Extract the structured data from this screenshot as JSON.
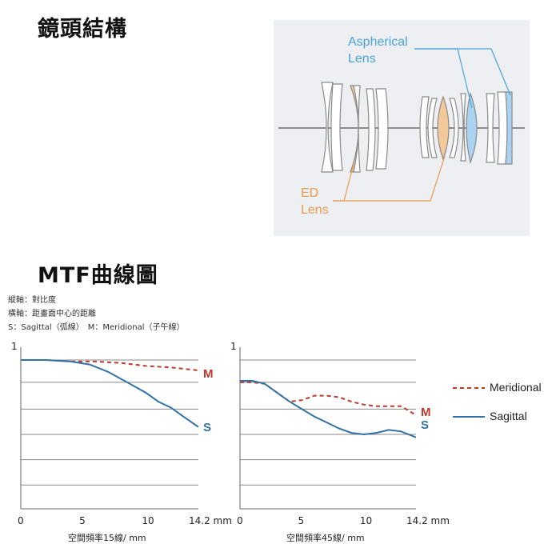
{
  "headings": {
    "lens_structure": "鏡頭結構",
    "mtf": "MTF曲線圖"
  },
  "lens_diagram": {
    "aspherical_label": [
      "Aspherical",
      "Lens"
    ],
    "ed_label": [
      "ED",
      "Lens"
    ],
    "colors": {
      "aspherical": "#a9d3f0",
      "ed": "#f4c99a",
      "line": "#8a8a8a",
      "blue": "#4aa3d6",
      "orange": "#e79a4a",
      "panel": "#eeeff3"
    }
  },
  "notes": [
    "縱軸：對比度",
    "橫軸：距畫面中心的距離",
    "S：Sagittal（弧線）　M：Meridional（子午線）"
  ],
  "legend": {
    "meridional": "Meridional",
    "sagittal": "Sagittal"
  },
  "colors": {
    "meridional": "#c0392b",
    "sagittal": "#2f73a8",
    "grid": "#888888"
  },
  "chart_data": [
    {
      "type": "line",
      "xlabel": "空間頻率15線/ mm",
      "ylabel": "",
      "xlim": [
        0,
        14.2
      ],
      "ylim": [
        0,
        1
      ],
      "x_ticks": [
        "0",
        "5",
        "10",
        "14.2 mm"
      ],
      "y_ticks": [
        "1"
      ],
      "grid": true,
      "series": [
        {
          "name": "Meridional",
          "tag": "M",
          "style": "dashed",
          "x": [
            0,
            2,
            4,
            6,
            8,
            10,
            12,
            14.2
          ],
          "y": [
            1.0,
            1.0,
            0.99,
            0.99,
            0.98,
            0.96,
            0.95,
            0.93
          ]
        },
        {
          "name": "Sagittal",
          "tag": "S",
          "style": "solid",
          "x": [
            0,
            2,
            4,
            5.5,
            7,
            8.5,
            10,
            11,
            12,
            13,
            14.2
          ],
          "y": [
            1.0,
            1.0,
            0.99,
            0.97,
            0.92,
            0.85,
            0.78,
            0.72,
            0.68,
            0.62,
            0.55
          ]
        }
      ]
    },
    {
      "type": "line",
      "xlabel": "空間頻率45線/ mm",
      "ylabel": "",
      "xlim": [
        0,
        14.2
      ],
      "ylim": [
        0,
        1
      ],
      "x_ticks": [
        "0",
        "5",
        "10",
        "14.2 mm"
      ],
      "y_ticks": [
        "1"
      ],
      "grid": true,
      "series": [
        {
          "name": "Meridional",
          "tag": "M",
          "style": "dashed",
          "x": [
            0,
            1,
            2,
            3,
            4,
            5,
            6,
            7,
            8,
            9,
            10,
            11,
            12,
            13,
            14.2
          ],
          "y": [
            0.85,
            0.85,
            0.84,
            0.78,
            0.72,
            0.73,
            0.76,
            0.76,
            0.75,
            0.72,
            0.7,
            0.69,
            0.69,
            0.69,
            0.63
          ]
        },
        {
          "name": "Sagittal",
          "tag": "S",
          "style": "solid",
          "x": [
            0,
            1,
            2,
            3,
            4,
            5,
            6,
            7,
            8,
            9,
            10,
            11,
            12,
            13,
            14.2
          ],
          "y": [
            0.86,
            0.86,
            0.84,
            0.78,
            0.72,
            0.67,
            0.62,
            0.58,
            0.54,
            0.51,
            0.5,
            0.51,
            0.53,
            0.52,
            0.48
          ]
        }
      ]
    }
  ]
}
